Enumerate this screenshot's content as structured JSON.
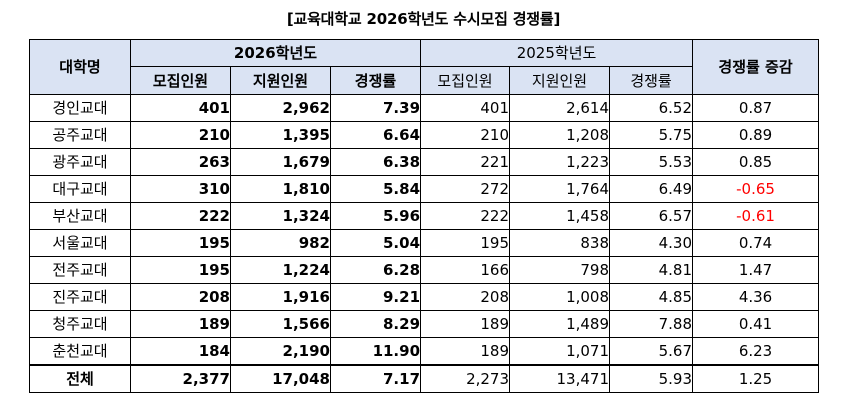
{
  "title": "[교육대학교 2026학년도 수시모집 경쟁률]",
  "headers": {
    "university": "대학명",
    "year2026": "2026학년도",
    "year2025": "2025학년도",
    "change": "경쟁률 증감",
    "recruit": "모집인원",
    "applicants": "지원인원",
    "ratio": "경쟁률"
  },
  "rows": [
    {
      "name": "경인교대",
      "r26": "401",
      "a26": "2,962",
      "c26": "7.39",
      "r25": "401",
      "a25": "2,614",
      "c25": "6.52",
      "diff": "0.87",
      "negative": false
    },
    {
      "name": "공주교대",
      "r26": "210",
      "a26": "1,395",
      "c26": "6.64",
      "r25": "210",
      "a25": "1,208",
      "c25": "5.75",
      "diff": "0.89",
      "negative": false
    },
    {
      "name": "광주교대",
      "r26": "263",
      "a26": "1,679",
      "c26": "6.38",
      "r25": "221",
      "a25": "1,223",
      "c25": "5.53",
      "diff": "0.85",
      "negative": false
    },
    {
      "name": "대구교대",
      "r26": "310",
      "a26": "1,810",
      "c26": "5.84",
      "r25": "272",
      "a25": "1,764",
      "c25": "6.49",
      "diff": "-0.65",
      "negative": true
    },
    {
      "name": "부산교대",
      "r26": "222",
      "a26": "1,324",
      "c26": "5.96",
      "r25": "222",
      "a25": "1,458",
      "c25": "6.57",
      "diff": "-0.61",
      "negative": true
    },
    {
      "name": "서울교대",
      "r26": "195",
      "a26": "982",
      "c26": "5.04",
      "r25": "195",
      "a25": "838",
      "c25": "4.30",
      "diff": "0.74",
      "negative": false
    },
    {
      "name": "전주교대",
      "r26": "195",
      "a26": "1,224",
      "c26": "6.28",
      "r25": "166",
      "a25": "798",
      "c25": "4.81",
      "diff": "1.47",
      "negative": false
    },
    {
      "name": "진주교대",
      "r26": "208",
      "a26": "1,916",
      "c26": "9.21",
      "r25": "208",
      "a25": "1,008",
      "c25": "4.85",
      "diff": "4.36",
      "negative": false
    },
    {
      "name": "청주교대",
      "r26": "189",
      "a26": "1,566",
      "c26": "8.29",
      "r25": "189",
      "a25": "1,489",
      "c25": "7.88",
      "diff": "0.41",
      "negative": false
    },
    {
      "name": "춘천교대",
      "r26": "184",
      "a26": "2,190",
      "c26": "11.90",
      "r25": "189",
      "a25": "1,071",
      "c25": "5.67",
      "diff": "6.23",
      "negative": false
    }
  ],
  "total": {
    "name": "전체",
    "r26": "2,377",
    "a26": "17,048",
    "c26": "7.17",
    "r25": "2,273",
    "a25": "13,471",
    "c25": "5.93",
    "diff": "1.25"
  },
  "colors": {
    "header_bg": "#dae3f3",
    "negative": "#ff0000",
    "border": "#000000"
  }
}
